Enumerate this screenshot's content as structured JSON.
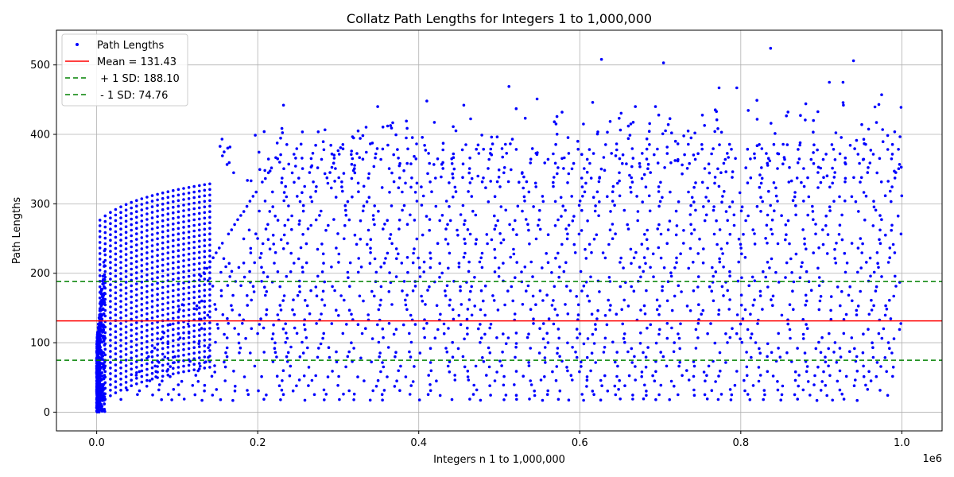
{
  "chart_data": {
    "type": "scatter",
    "title": "Collatz Path Lengths for Integers 1 to 1,000,000",
    "xlabel": "Integers n 1 to 1,000,000",
    "ylabel": "Path Lengths",
    "x_offset_text": "1e6",
    "xlim": [
      -0.05,
      1.05
    ],
    "ylim": [
      -27,
      550
    ],
    "x_ticks": [
      0.0,
      0.2,
      0.4,
      0.6,
      0.8,
      1.0
    ],
    "x_tick_labels": [
      "0.0",
      "0.2",
      "0.4",
      "0.6",
      "0.8",
      "1.0"
    ],
    "y_ticks": [
      0,
      100,
      200,
      300,
      400,
      500
    ],
    "y_tick_labels": [
      "0",
      "100",
      "200",
      "300",
      "400",
      "500"
    ],
    "grid": true,
    "legend_position": "top-left",
    "n_range": [
      1,
      1000000
    ],
    "series": [
      {
        "name": "Path Lengths",
        "kind": "scatter",
        "color": "#0000ff",
        "points": [
          [
            0.627,
            508
          ],
          [
            0.837,
            524
          ],
          [
            0.94,
            506
          ],
          [
            0.704,
            503
          ],
          [
            0.512,
            469
          ],
          [
            0.91,
            475
          ],
          [
            0.927,
            475
          ],
          [
            0.975,
            457
          ],
          [
            0.795,
            467
          ],
          [
            0.773,
            467
          ],
          [
            0.232,
            442
          ],
          [
            0.456,
            442
          ],
          [
            0.616,
            446
          ],
          [
            0.82,
            449
          ],
          [
            0.349,
            440
          ],
          [
            0.41,
            448
          ],
          [
            0.999,
            439
          ],
          [
            0.694,
            440
          ],
          [
            0.669,
            440
          ],
          [
            0.578,
            432
          ],
          [
            0.521,
            437
          ],
          [
            0.547,
            451
          ]
        ]
      },
      {
        "name": "Mean = 131.43",
        "kind": "hline",
        "value": 131.43,
        "color": "#ff0000",
        "style": "solid"
      },
      {
        "name": " + 1 SD: 188.10",
        "kind": "hline",
        "value": 188.1,
        "color": "#008000",
        "style": "dashed"
      },
      {
        "name": " - 1 SD: 74.76",
        "kind": "hline",
        "value": 74.76,
        "color": "#008000",
        "style": "dashed"
      }
    ]
  }
}
